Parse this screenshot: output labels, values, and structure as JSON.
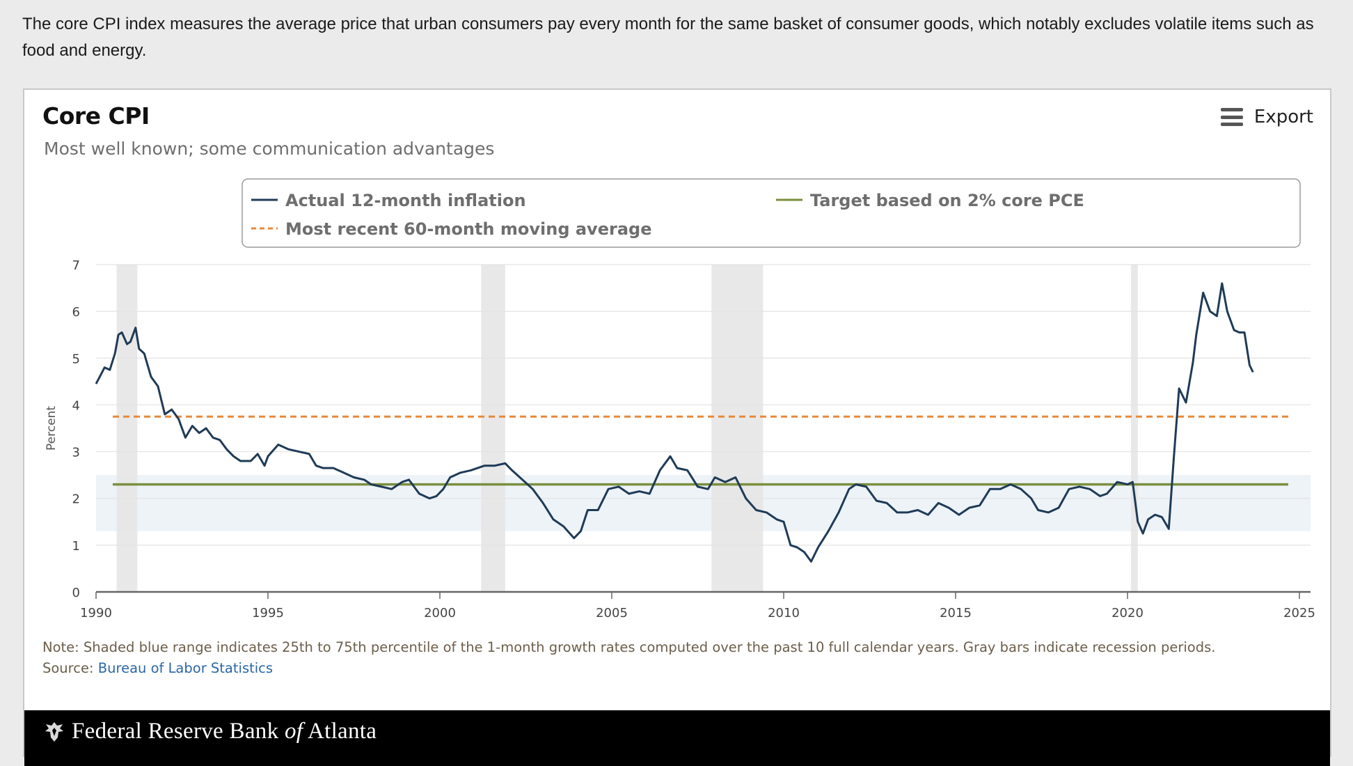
{
  "intro_text": "The core CPI index measures the average price that urban consumers pay every month for the same basket of consumer goods, which notably excludes volatile items such as food and energy.",
  "header": {
    "export_label": "Export"
  },
  "note": {
    "text": "Note: Shaded blue range indicates 25th to 75th percentile of the 1-month growth rates computed over the past 10 full calendar years. Gray bars indicate recession periods.",
    "source_prefix": "Source: ",
    "source_link": "Bureau of Labor Statistics"
  },
  "footer": {
    "brand_main": "Federal Reserve Bank ",
    "brand_italic": "of",
    "brand_end": " Atlanta"
  },
  "colors": {
    "actual": "#1f3b57",
    "target": "#7a8f3e",
    "moving_avg": "#e8893a",
    "band": "#eef3f8",
    "recession": "#e6e6e6"
  },
  "chart_data": {
    "type": "line",
    "title": "Core CPI",
    "subtitle": "Most well known; some communication advantages",
    "ylabel": "Percent",
    "xlabel": "",
    "xlim": [
      1990,
      2025
    ],
    "ylim": [
      0,
      7
    ],
    "x_ticks": [
      1990,
      1995,
      2000,
      2005,
      2010,
      2015,
      2020,
      2025
    ],
    "y_ticks": [
      0,
      1,
      2,
      3,
      4,
      5,
      6,
      7
    ],
    "legend": [
      {
        "name": "Actual 12-month inflation",
        "style": "solid",
        "color": "#1f3b57"
      },
      {
        "name": "Target based on 2% core PCE",
        "style": "solid",
        "color": "#7a8f3e"
      },
      {
        "name": "Most recent 60-month moving average",
        "style": "dashed",
        "color": "#e8893a"
      }
    ],
    "legend_position": "top",
    "grid": true,
    "band": {
      "low": 1.3,
      "high": 2.5
    },
    "target_value": 2.3,
    "moving_average_value": 3.75,
    "recessions": [
      [
        1990.6,
        1991.2
      ],
      [
        2001.2,
        2001.9
      ],
      [
        2007.9,
        2009.4
      ],
      [
        2020.1,
        2020.3
      ]
    ],
    "series": [
      {
        "name": "Actual 12-month inflation",
        "points": [
          [
            1990.0,
            4.45
          ],
          [
            1990.25,
            4.8
          ],
          [
            1990.4,
            4.75
          ],
          [
            1990.55,
            5.1
          ],
          [
            1990.65,
            5.5
          ],
          [
            1990.75,
            5.55
          ],
          [
            1990.9,
            5.3
          ],
          [
            1991.0,
            5.35
          ],
          [
            1991.15,
            5.65
          ],
          [
            1991.25,
            5.2
          ],
          [
            1991.4,
            5.1
          ],
          [
            1991.6,
            4.6
          ],
          [
            1991.8,
            4.4
          ],
          [
            1992.0,
            3.8
          ],
          [
            1992.2,
            3.9
          ],
          [
            1992.4,
            3.7
          ],
          [
            1992.6,
            3.3
          ],
          [
            1992.8,
            3.55
          ],
          [
            1993.0,
            3.4
          ],
          [
            1993.2,
            3.5
          ],
          [
            1993.4,
            3.3
          ],
          [
            1993.6,
            3.25
          ],
          [
            1993.8,
            3.05
          ],
          [
            1994.0,
            2.9
          ],
          [
            1994.2,
            2.8
          ],
          [
            1994.5,
            2.8
          ],
          [
            1994.7,
            2.95
          ],
          [
            1994.9,
            2.7
          ],
          [
            1995.0,
            2.9
          ],
          [
            1995.3,
            3.15
          ],
          [
            1995.6,
            3.05
          ],
          [
            1995.9,
            3.0
          ],
          [
            1996.2,
            2.95
          ],
          [
            1996.4,
            2.7
          ],
          [
            1996.6,
            2.65
          ],
          [
            1996.9,
            2.65
          ],
          [
            1997.2,
            2.55
          ],
          [
            1997.5,
            2.45
          ],
          [
            1997.8,
            2.4
          ],
          [
            1998.0,
            2.3
          ],
          [
            1998.3,
            2.25
          ],
          [
            1998.6,
            2.2
          ],
          [
            1998.9,
            2.35
          ],
          [
            1999.1,
            2.4
          ],
          [
            1999.4,
            2.1
          ],
          [
            1999.7,
            2.0
          ],
          [
            1999.9,
            2.05
          ],
          [
            2000.1,
            2.2
          ],
          [
            2000.3,
            2.45
          ],
          [
            2000.6,
            2.55
          ],
          [
            2000.9,
            2.6
          ],
          [
            2001.1,
            2.65
          ],
          [
            2001.3,
            2.7
          ],
          [
            2001.6,
            2.7
          ],
          [
            2001.9,
            2.75
          ],
          [
            2002.1,
            2.6
          ],
          [
            2002.4,
            2.4
          ],
          [
            2002.7,
            2.2
          ],
          [
            2003.0,
            1.9
          ],
          [
            2003.3,
            1.55
          ],
          [
            2003.6,
            1.4
          ],
          [
            2003.9,
            1.15
          ],
          [
            2004.1,
            1.3
          ],
          [
            2004.3,
            1.75
          ],
          [
            2004.6,
            1.75
          ],
          [
            2004.9,
            2.2
          ],
          [
            2005.2,
            2.25
          ],
          [
            2005.5,
            2.1
          ],
          [
            2005.8,
            2.15
          ],
          [
            2006.1,
            2.1
          ],
          [
            2006.4,
            2.6
          ],
          [
            2006.7,
            2.9
          ],
          [
            2006.9,
            2.65
          ],
          [
            2007.2,
            2.6
          ],
          [
            2007.5,
            2.25
          ],
          [
            2007.8,
            2.2
          ],
          [
            2008.0,
            2.45
          ],
          [
            2008.3,
            2.35
          ],
          [
            2008.6,
            2.45
          ],
          [
            2008.9,
            2.0
          ],
          [
            2009.2,
            1.75
          ],
          [
            2009.5,
            1.7
          ],
          [
            2009.8,
            1.55
          ],
          [
            2010.0,
            1.5
          ],
          [
            2010.2,
            1.0
          ],
          [
            2010.4,
            0.95
          ],
          [
            2010.6,
            0.85
          ],
          [
            2010.8,
            0.65
          ],
          [
            2011.0,
            0.95
          ],
          [
            2011.3,
            1.3
          ],
          [
            2011.6,
            1.7
          ],
          [
            2011.9,
            2.2
          ],
          [
            2012.1,
            2.3
          ],
          [
            2012.4,
            2.25
          ],
          [
            2012.7,
            1.95
          ],
          [
            2013.0,
            1.9
          ],
          [
            2013.3,
            1.7
          ],
          [
            2013.6,
            1.7
          ],
          [
            2013.9,
            1.75
          ],
          [
            2014.2,
            1.65
          ],
          [
            2014.5,
            1.9
          ],
          [
            2014.8,
            1.8
          ],
          [
            2015.1,
            1.65
          ],
          [
            2015.4,
            1.8
          ],
          [
            2015.7,
            1.85
          ],
          [
            2016.0,
            2.2
          ],
          [
            2016.3,
            2.2
          ],
          [
            2016.6,
            2.3
          ],
          [
            2016.9,
            2.2
          ],
          [
            2017.2,
            2.0
          ],
          [
            2017.4,
            1.75
          ],
          [
            2017.7,
            1.7
          ],
          [
            2018.0,
            1.8
          ],
          [
            2018.3,
            2.2
          ],
          [
            2018.6,
            2.25
          ],
          [
            2018.9,
            2.2
          ],
          [
            2019.2,
            2.05
          ],
          [
            2019.4,
            2.1
          ],
          [
            2019.7,
            2.35
          ],
          [
            2020.0,
            2.3
          ],
          [
            2020.15,
            2.35
          ],
          [
            2020.3,
            1.5
          ],
          [
            2020.45,
            1.25
          ],
          [
            2020.6,
            1.55
          ],
          [
            2020.8,
            1.65
          ],
          [
            2021.0,
            1.6
          ],
          [
            2021.2,
            1.35
          ],
          [
            2021.35,
            2.9
          ],
          [
            2021.5,
            4.35
          ],
          [
            2021.7,
            4.05
          ],
          [
            2021.9,
            4.9
          ],
          [
            2022.0,
            5.5
          ],
          [
            2022.2,
            6.4
          ],
          [
            2022.4,
            6.0
          ],
          [
            2022.6,
            5.9
          ],
          [
            2022.75,
            6.6
          ],
          [
            2022.9,
            6.0
          ],
          [
            2023.1,
            5.6
          ],
          [
            2023.25,
            5.55
          ],
          [
            2023.4,
            5.55
          ],
          [
            2023.55,
            4.85
          ],
          [
            2023.65,
            4.7
          ]
        ]
      }
    ]
  }
}
